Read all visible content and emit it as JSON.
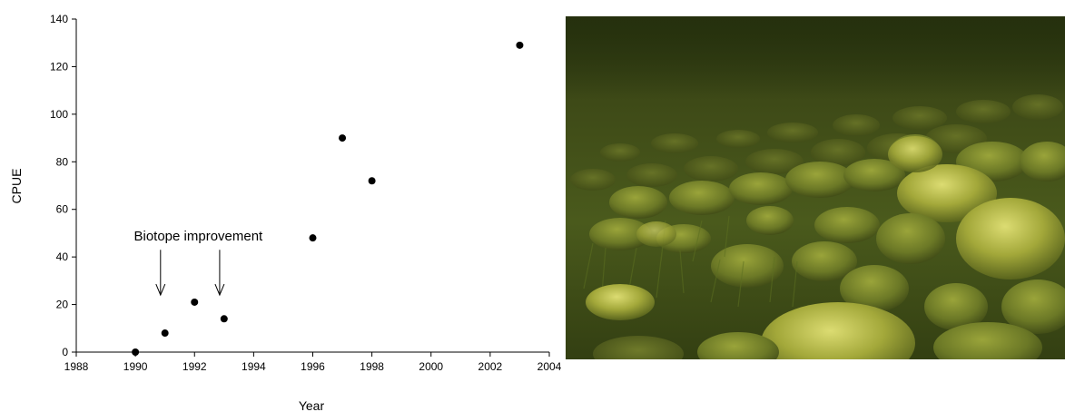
{
  "chart_data": {
    "type": "scatter",
    "title": "",
    "xlabel": "Year",
    "ylabel": "CPUE",
    "xlim": [
      1988,
      2004
    ],
    "ylim": [
      0,
      140
    ],
    "x_ticks": [
      1988,
      1990,
      1992,
      1994,
      1996,
      1998,
      2000,
      2002,
      2004
    ],
    "y_ticks": [
      0,
      20,
      40,
      60,
      80,
      100,
      120,
      140
    ],
    "grid": false,
    "legend": "none",
    "series": [
      {
        "points": [
          {
            "x": 1990,
            "y": 0
          },
          {
            "x": 1991,
            "y": 8
          },
          {
            "x": 1992,
            "y": 21
          },
          {
            "x": 1993,
            "y": 14
          },
          {
            "x": 1996,
            "y": 48
          },
          {
            "x": 1997,
            "y": 90
          },
          {
            "x": 1998,
            "y": 72
          },
          {
            "x": 2003,
            "y": 129
          }
        ]
      }
    ],
    "annotation": {
      "text": "Biotope improvement",
      "arrows": [
        {
          "x": 1990.85,
          "y_from": 43,
          "y_to": 24
        },
        {
          "x": 1992.85,
          "y_from": 43,
          "y_to": 24
        }
      ]
    }
  },
  "photo": {
    "description_icon": "underwater-rocky-riverbed-image",
    "colors": {
      "water": "#2b3a12",
      "rock": "#8f9a2e",
      "highlight": "#d4d66a",
      "weed": "#3f5516"
    }
  }
}
